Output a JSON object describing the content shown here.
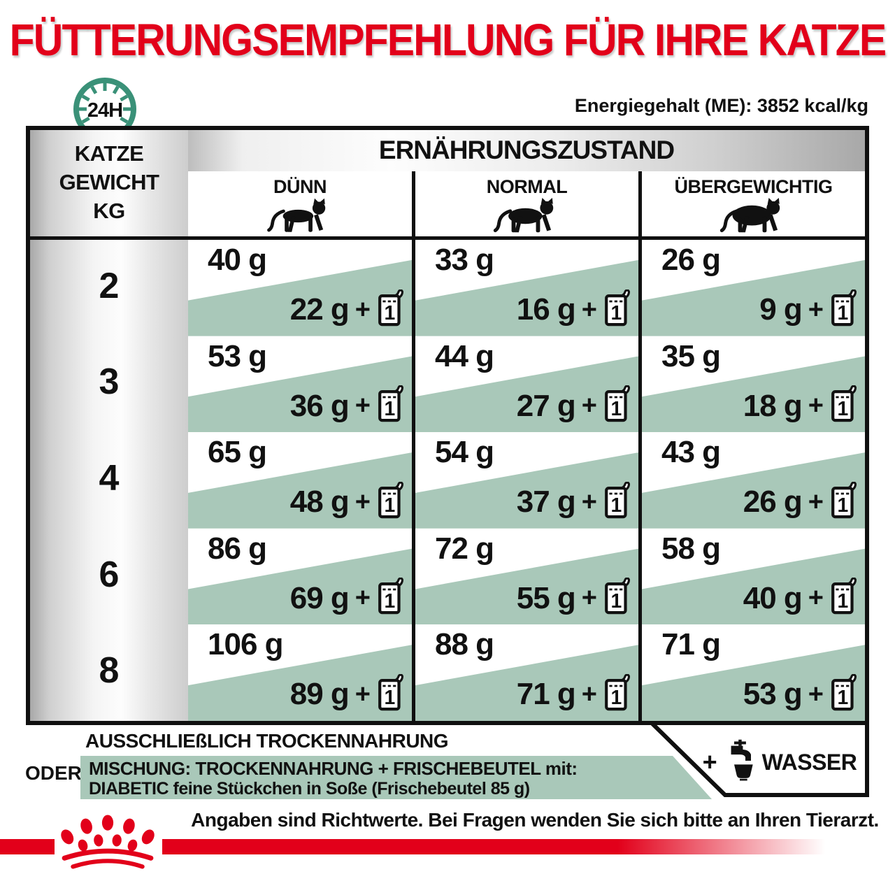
{
  "title": "FÜTTERUNGSEMPFEHLUNG FÜR IHRE KATZE",
  "badge_24h": "24H",
  "energy_label": "Energiegehalt (ME): 3852 kcal/kg",
  "table": {
    "weight_header_lines": [
      "KATZE",
      "GEWICHT",
      "KG"
    ],
    "condition_header": "ERNÄHRUNGSZUSTAND",
    "columns": [
      "DÜNN",
      "NORMAL",
      "ÜBERGEWICHTIG"
    ],
    "plus_sign": "+",
    "pouch_count": "1",
    "rows": [
      {
        "weight": "2",
        "cells": [
          {
            "dry": "40 g",
            "mix": "22 g"
          },
          {
            "dry": "33 g",
            "mix": "16 g"
          },
          {
            "dry": "26 g",
            "mix": "9 g"
          }
        ]
      },
      {
        "weight": "3",
        "cells": [
          {
            "dry": "53 g",
            "mix": "36 g"
          },
          {
            "dry": "44 g",
            "mix": "27 g"
          },
          {
            "dry": "35 g",
            "mix": "18 g"
          }
        ]
      },
      {
        "weight": "4",
        "cells": [
          {
            "dry": "65 g",
            "mix": "48 g"
          },
          {
            "dry": "54 g",
            "mix": "37 g"
          },
          {
            "dry": "43 g",
            "mix": "26 g"
          }
        ]
      },
      {
        "weight": "6",
        "cells": [
          {
            "dry": "86 g",
            "mix": "69 g"
          },
          {
            "dry": "72 g",
            "mix": "55 g"
          },
          {
            "dry": "58 g",
            "mix": "40 g"
          }
        ]
      },
      {
        "weight": "8",
        "cells": [
          {
            "dry": "106 g",
            "mix": "89 g"
          },
          {
            "dry": "88 g",
            "mix": "71 g"
          },
          {
            "dry": "71 g",
            "mix": "53 g"
          }
        ]
      }
    ]
  },
  "footer": {
    "dry_only": "AUSSCHLIEßLICH TROCKENNAHRUNG",
    "or_label": "ODER",
    "mix_line1": "MISCHUNG: TROCKENNAHRUNG + FRISCHEBEUTEL mit:",
    "mix_line2": "DIABETIC feine Stückchen in Soße (Frischebeutel 85 g)",
    "water_plus": "+",
    "water_label": "WASSER",
    "disclaimer": "Angaben sind Richtwerte. Bei Fragen wenden Sie sich bitte an Ihren Tierarzt."
  },
  "colors": {
    "brand_red": "#e2001a",
    "sage_green": "#a9c8b9",
    "teal_clock": "#3a9178",
    "ink_black": "#111111"
  }
}
